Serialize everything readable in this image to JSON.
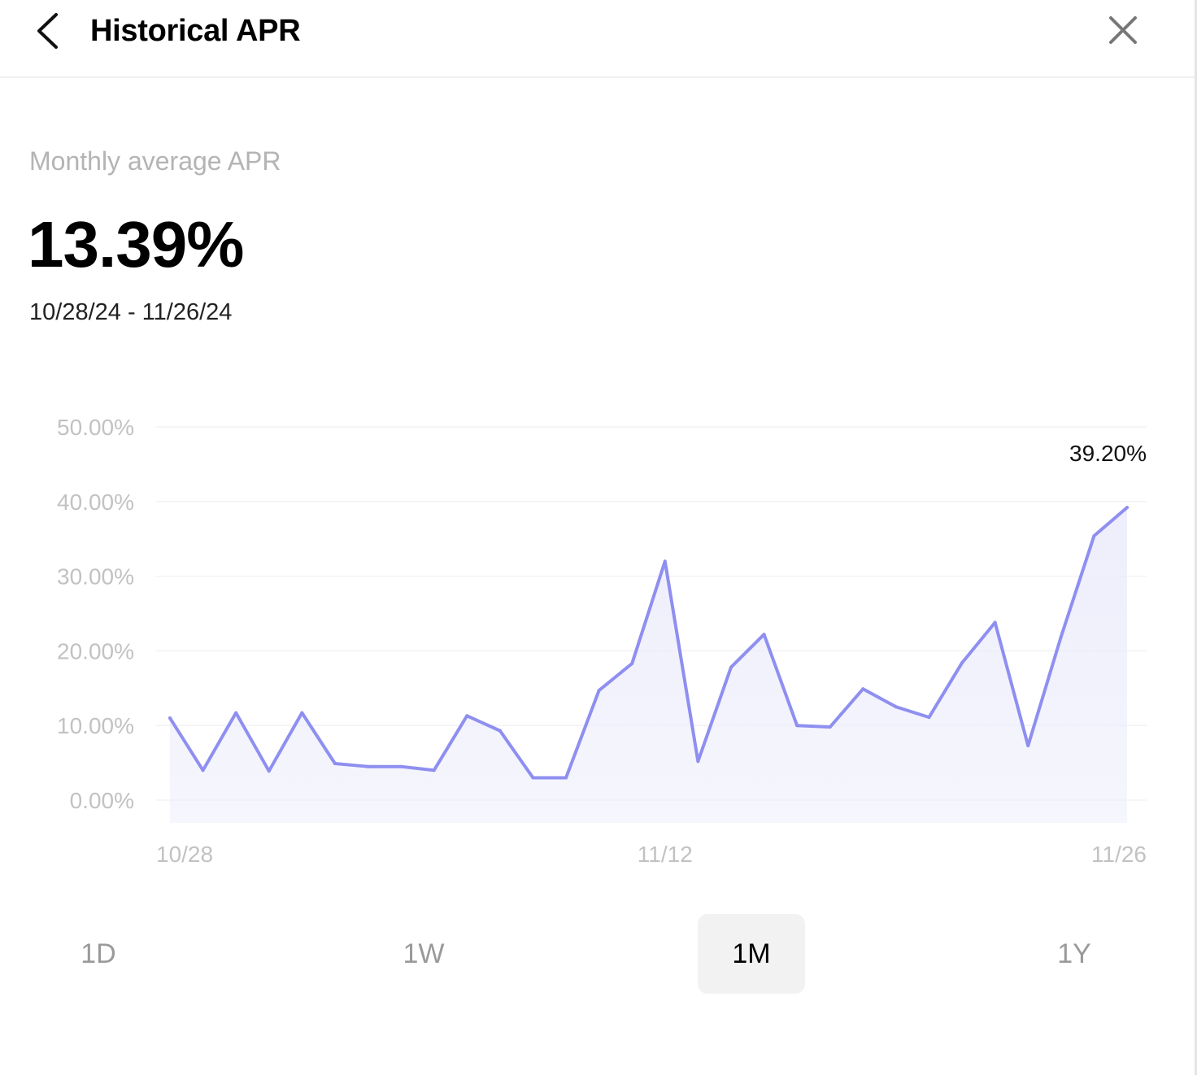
{
  "header": {
    "title": "Historical APR",
    "back_icon": "chevron-left-icon",
    "close_icon": "close-icon"
  },
  "summary": {
    "label": "Monthly average APR",
    "value": "13.39%",
    "date_range": "10/28/24 - 11/26/24"
  },
  "range_tabs": [
    {
      "label": "1D",
      "active": false
    },
    {
      "label": "1W",
      "active": false
    },
    {
      "label": "1M",
      "active": true
    },
    {
      "label": "1Y",
      "active": false
    }
  ],
  "chart_data": {
    "type": "area",
    "x": [
      "10/28",
      "10/29",
      "10/30",
      "10/31",
      "11/01",
      "11/02",
      "11/03",
      "11/04",
      "11/05",
      "11/06",
      "11/07",
      "11/08",
      "11/09",
      "11/10",
      "11/11",
      "11/12",
      "11/13",
      "11/14",
      "11/15",
      "11/16",
      "11/17",
      "11/18",
      "11/19",
      "11/20",
      "11/21",
      "11/22",
      "11/23",
      "11/24",
      "11/25",
      "11/26"
    ],
    "y": [
      11.0,
      4.0,
      11.7,
      3.9,
      11.7,
      4.9,
      4.5,
      4.5,
      4.0,
      11.3,
      9.3,
      3.0,
      3.0,
      14.7,
      18.3,
      32.0,
      5.2,
      17.8,
      22.2,
      10.0,
      9.8,
      14.9,
      12.5,
      11.1,
      18.4,
      23.8,
      7.3,
      21.9,
      35.4,
      39.2
    ],
    "x_tick_labels": [
      "10/28",
      "11/12",
      "11/26"
    ],
    "y_tick_labels": [
      "0.00%",
      "10.00%",
      "20.00%",
      "30.00%",
      "40.00%",
      "50.00%"
    ],
    "ylim": [
      0,
      50
    ],
    "last_value_label": "39.20%",
    "line_color": "#8e8ff0",
    "fill_color": "#eeeefc",
    "grid": true
  }
}
